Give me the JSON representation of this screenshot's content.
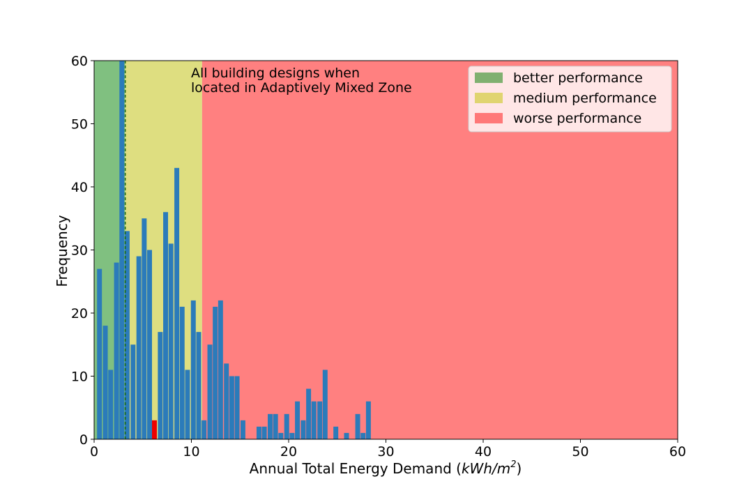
{
  "chart_data": {
    "type": "bar",
    "xlabel": "Annual Total Energy Demand (",
    "xlabel_unit": "kWh/m",
    "xlabel_sup": "2",
    "xlabel_close": ")",
    "ylabel": "Frequency",
    "xlim": [
      0,
      60
    ],
    "ylim": [
      0,
      60
    ],
    "xticks": [
      "0",
      "10",
      "20",
      "30",
      "40",
      "50",
      "60"
    ],
    "yticks": [
      "0",
      "10",
      "20",
      "30",
      "40",
      "50",
      "60"
    ],
    "grid": false,
    "legend_position": "top-right",
    "annotation": [
      "All building designs when",
      "located in Adaptively Mixed Zone"
    ],
    "bands": [
      {
        "name": "better performance",
        "x0": 0,
        "x1": 3.2,
        "color": "#80c080"
      },
      {
        "name": "medium performance",
        "x0": 3.2,
        "x1": 11.1,
        "color": "#dede80"
      },
      {
        "name": "worse performance",
        "x0": 11.1,
        "x1": 60,
        "color": "#ff8080"
      }
    ],
    "legend_colors": [
      "#80b070",
      "#e0d470",
      "#ff7878"
    ],
    "threshold_x": 3.2,
    "bar_color": "#2b7bba",
    "highlight_color": "#ee0000",
    "bar_width": 0.5,
    "bins": [
      {
        "x": 0.55,
        "y": 27
      },
      {
        "x": 1.15,
        "y": 18
      },
      {
        "x": 1.7,
        "y": 11
      },
      {
        "x": 2.3,
        "y": 28
      },
      {
        "x": 2.85,
        "y": 60
      },
      {
        "x": 3.4,
        "y": 33
      },
      {
        "x": 4.0,
        "y": 15
      },
      {
        "x": 4.6,
        "y": 29
      },
      {
        "x": 5.15,
        "y": 35
      },
      {
        "x": 5.7,
        "y": 30
      },
      {
        "x": 6.2,
        "y": 3,
        "highlight": true
      },
      {
        "x": 6.8,
        "y": 17
      },
      {
        "x": 7.35,
        "y": 36
      },
      {
        "x": 7.9,
        "y": 31
      },
      {
        "x": 8.5,
        "y": 43
      },
      {
        "x": 9.05,
        "y": 21
      },
      {
        "x": 9.6,
        "y": 11
      },
      {
        "x": 10.2,
        "y": 22
      },
      {
        "x": 10.75,
        "y": 17
      },
      {
        "x": 11.3,
        "y": 3
      },
      {
        "x": 11.9,
        "y": 15
      },
      {
        "x": 12.45,
        "y": 21
      },
      {
        "x": 13.0,
        "y": 22
      },
      {
        "x": 13.6,
        "y": 12
      },
      {
        "x": 14.15,
        "y": 10
      },
      {
        "x": 14.7,
        "y": 10
      },
      {
        "x": 15.3,
        "y": 3
      },
      {
        "x": 16.95,
        "y": 2
      },
      {
        "x": 17.5,
        "y": 2
      },
      {
        "x": 18.1,
        "y": 4
      },
      {
        "x": 18.65,
        "y": 4
      },
      {
        "x": 19.2,
        "y": 1
      },
      {
        "x": 19.8,
        "y": 4
      },
      {
        "x": 20.35,
        "y": 1
      },
      {
        "x": 20.9,
        "y": 6
      },
      {
        "x": 21.5,
        "y": 3
      },
      {
        "x": 22.05,
        "y": 8
      },
      {
        "x": 22.6,
        "y": 6
      },
      {
        "x": 23.2,
        "y": 6
      },
      {
        "x": 23.75,
        "y": 11
      },
      {
        "x": 24.85,
        "y": 2
      },
      {
        "x": 25.95,
        "y": 1
      },
      {
        "x": 27.1,
        "y": 4
      },
      {
        "x": 27.65,
        "y": 1
      },
      {
        "x": 28.2,
        "y": 6
      }
    ]
  }
}
